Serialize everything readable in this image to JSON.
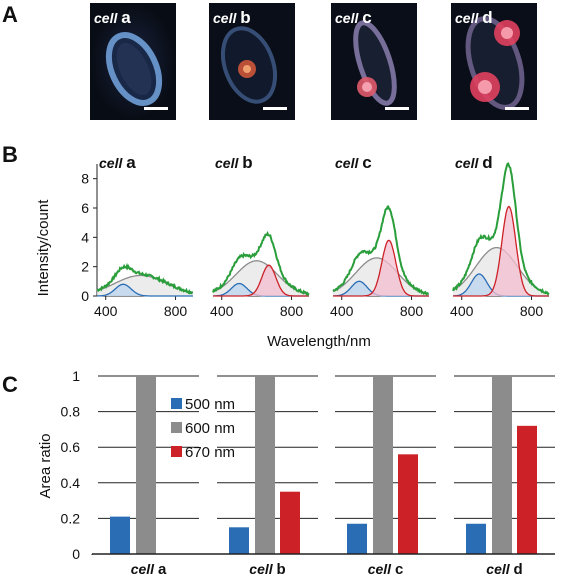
{
  "panels": {
    "a": "A",
    "b": "B",
    "c": "C"
  },
  "cells": [
    {
      "italic": "cell",
      "letter": "a"
    },
    {
      "italic": "cell",
      "letter": "b"
    },
    {
      "italic": "cell",
      "letter": "c"
    },
    {
      "italic": "cell",
      "letter": "d"
    }
  ],
  "colors": {
    "blue": "#2a6db5",
    "gray": "#8c8c8c",
    "red": "#cc2127",
    "green": "#2a9e3b",
    "pink_fill": "#f4bfd0",
    "blue_fill": "#bcd4ee",
    "gray_fill": "#e6e6e6"
  },
  "chart_data": [
    {
      "type": "line",
      "panel": "B",
      "xlabel": "Wavelength/nm",
      "ylabel": "Intensity/count",
      "xlim": [
        350,
        900
      ],
      "ylim": [
        0,
        9
      ],
      "xticks": [
        400,
        800
      ],
      "yticks": [
        0,
        2,
        4,
        6,
        8
      ],
      "xtick_labels": [
        "400",
        "800"
      ],
      "ytick_labels": [
        "0",
        "2",
        "4",
        "6",
        "8"
      ],
      "subplots": [
        {
          "label": "cell a",
          "components": [
            {
              "center": 500,
              "amp": 0.8,
              "width": 45
            },
            {
              "center": 600,
              "amp": 1.4,
              "width": 150
            },
            {
              "center": 670,
              "amp": 0.0,
              "width": 40
            }
          ]
        },
        {
          "label": "cell b",
          "components": [
            {
              "center": 500,
              "amp": 0.85,
              "width": 45
            },
            {
              "center": 600,
              "amp": 2.4,
              "width": 120
            },
            {
              "center": 670,
              "amp": 2.1,
              "width": 40
            }
          ]
        },
        {
          "label": "cell c",
          "components": [
            {
              "center": 500,
              "amp": 1.0,
              "width": 45
            },
            {
              "center": 600,
              "amp": 2.6,
              "width": 120
            },
            {
              "center": 670,
              "amp": 3.8,
              "width": 40
            }
          ]
        },
        {
          "label": "cell d",
          "components": [
            {
              "center": 500,
              "amp": 1.5,
              "width": 45
            },
            {
              "center": 600,
              "amp": 3.3,
              "width": 120
            },
            {
              "center": 670,
              "amp": 6.1,
              "width": 40
            }
          ]
        }
      ]
    },
    {
      "type": "bar",
      "panel": "C",
      "ylabel": "Area ratio",
      "ylim": [
        0,
        1
      ],
      "yticks": [
        0,
        0.2,
        0.4,
        0.6,
        0.8,
        1
      ],
      "ytick_labels": [
        "0",
        "0.2",
        "0.4",
        "0.6",
        "0.8",
        "1"
      ],
      "categories": [
        "cell a",
        "cell b",
        "cell c",
        "cell d"
      ],
      "series": [
        {
          "name": "500 nm",
          "values": [
            0.21,
            0.15,
            0.17,
            0.17
          ]
        },
        {
          "name": "600 nm",
          "values": [
            1.0,
            1.0,
            1.0,
            1.0
          ]
        },
        {
          "name": "670 nm",
          "values": [
            0.0,
            0.35,
            0.56,
            0.72
          ]
        }
      ],
      "legend": "top-left",
      "grid": true
    }
  ]
}
